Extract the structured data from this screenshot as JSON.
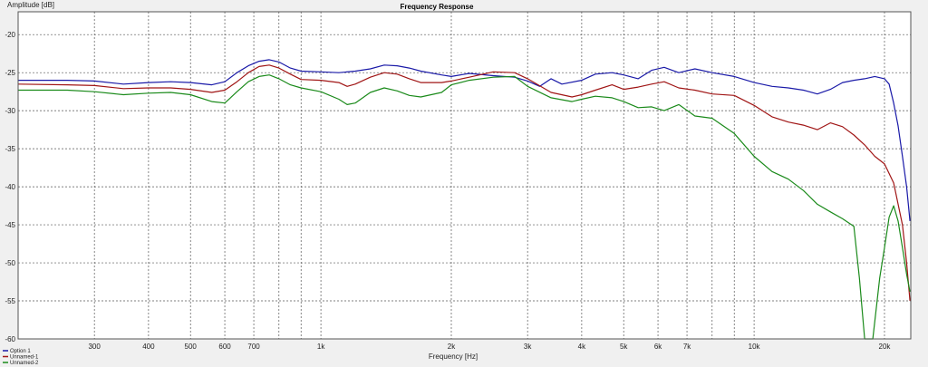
{
  "chart_data": {
    "type": "line",
    "title": "Frequency Response",
    "xlabel": "Frequency [Hz]",
    "ylabel": "Amplitude [dB]",
    "x_scale": "log",
    "xlim": [
      200,
      23000
    ],
    "ylim": [
      -60,
      -17
    ],
    "grid": true,
    "legend_position": "bottom-left",
    "x_ticks": [
      300,
      400,
      500,
      600,
      700,
      1000,
      2000,
      3000,
      4000,
      5000,
      6000,
      7000,
      10000,
      20000
    ],
    "x_tick_labels": [
      "300",
      "400",
      "500",
      "600",
      "700",
      "1k",
      "2k",
      "3k",
      "4k",
      "5k",
      "6k",
      "7k",
      "10k",
      "20k"
    ],
    "x_minor_ticks": [
      800,
      900,
      8000,
      9000
    ],
    "y_ticks": [
      -20,
      -25,
      -30,
      -35,
      -40,
      -45,
      -50,
      -55,
      -60
    ],
    "y_tick_labels": [
      "-20",
      "-25",
      "-30",
      "-35",
      "-40",
      "-45",
      "-50",
      "-55",
      "-60"
    ],
    "series": [
      {
        "name": "Option 1",
        "color": "#1a1aa8",
        "points": [
          [
            200,
            -26.0
          ],
          [
            260,
            -26.0
          ],
          [
            300,
            -26.1
          ],
          [
            350,
            -26.5
          ],
          [
            400,
            -26.3
          ],
          [
            450,
            -26.2
          ],
          [
            500,
            -26.3
          ],
          [
            560,
            -26.6
          ],
          [
            600,
            -26.2
          ],
          [
            640,
            -25.0
          ],
          [
            680,
            -24.1
          ],
          [
            720,
            -23.5
          ],
          [
            760,
            -23.3
          ],
          [
            800,
            -23.6
          ],
          [
            850,
            -24.4
          ],
          [
            900,
            -24.8
          ],
          [
            1000,
            -24.9
          ],
          [
            1100,
            -25.0
          ],
          [
            1200,
            -24.8
          ],
          [
            1300,
            -24.5
          ],
          [
            1400,
            -24.0
          ],
          [
            1500,
            -24.1
          ],
          [
            1600,
            -24.4
          ],
          [
            1700,
            -24.8
          ],
          [
            1900,
            -25.3
          ],
          [
            2000,
            -25.5
          ],
          [
            2200,
            -25.1
          ],
          [
            2500,
            -25.4
          ],
          [
            2800,
            -25.6
          ],
          [
            3000,
            -26.1
          ],
          [
            3200,
            -26.8
          ],
          [
            3400,
            -25.8
          ],
          [
            3600,
            -26.5
          ],
          [
            4000,
            -26.0
          ],
          [
            4300,
            -25.2
          ],
          [
            4700,
            -25.0
          ],
          [
            5000,
            -25.3
          ],
          [
            5400,
            -25.8
          ],
          [
            5800,
            -24.7
          ],
          [
            6200,
            -24.3
          ],
          [
            6700,
            -25.0
          ],
          [
            7300,
            -24.5
          ],
          [
            8000,
            -25.0
          ],
          [
            9000,
            -25.5
          ],
          [
            10000,
            -26.3
          ],
          [
            11000,
            -26.8
          ],
          [
            12000,
            -27.0
          ],
          [
            13000,
            -27.3
          ],
          [
            14000,
            -27.8
          ],
          [
            15000,
            -27.2
          ],
          [
            16000,
            -26.3
          ],
          [
            17000,
            -26.0
          ],
          [
            18000,
            -25.8
          ],
          [
            19000,
            -25.5
          ],
          [
            20000,
            -25.8
          ],
          [
            20500,
            -26.5
          ],
          [
            21000,
            -29.0
          ],
          [
            21500,
            -32.0
          ],
          [
            22000,
            -36.0
          ],
          [
            22500,
            -40.0
          ],
          [
            22900,
            -44.5
          ]
        ]
      },
      {
        "name": "Unnamed-1",
        "color": "#a01515",
        "points": [
          [
            200,
            -26.5
          ],
          [
            260,
            -26.6
          ],
          [
            300,
            -26.7
          ],
          [
            350,
            -27.1
          ],
          [
            400,
            -27.0
          ],
          [
            450,
            -27.0
          ],
          [
            500,
            -27.2
          ],
          [
            560,
            -27.6
          ],
          [
            600,
            -27.3
          ],
          [
            640,
            -26.2
          ],
          [
            680,
            -25.0
          ],
          [
            720,
            -24.2
          ],
          [
            760,
            -24.0
          ],
          [
            800,
            -24.4
          ],
          [
            850,
            -25.2
          ],
          [
            900,
            -25.9
          ],
          [
            1000,
            -26.0
          ],
          [
            1100,
            -26.3
          ],
          [
            1150,
            -26.8
          ],
          [
            1200,
            -26.5
          ],
          [
            1300,
            -25.6
          ],
          [
            1400,
            -25.0
          ],
          [
            1500,
            -25.2
          ],
          [
            1600,
            -25.8
          ],
          [
            1700,
            -26.3
          ],
          [
            1900,
            -26.3
          ],
          [
            2000,
            -26.1
          ],
          [
            2200,
            -25.6
          ],
          [
            2500,
            -24.9
          ],
          [
            2800,
            -25.0
          ],
          [
            3000,
            -25.8
          ],
          [
            3400,
            -27.6
          ],
          [
            3800,
            -28.2
          ],
          [
            4000,
            -27.9
          ],
          [
            4300,
            -27.3
          ],
          [
            4700,
            -26.6
          ],
          [
            5000,
            -27.2
          ],
          [
            5400,
            -26.9
          ],
          [
            5800,
            -26.5
          ],
          [
            6200,
            -26.2
          ],
          [
            6700,
            -27.0
          ],
          [
            7300,
            -27.3
          ],
          [
            8000,
            -27.8
          ],
          [
            9000,
            -28.0
          ],
          [
            10000,
            -29.3
          ],
          [
            11000,
            -30.8
          ],
          [
            12000,
            -31.5
          ],
          [
            13000,
            -31.9
          ],
          [
            14000,
            -32.5
          ],
          [
            15000,
            -31.6
          ],
          [
            16000,
            -32.1
          ],
          [
            17000,
            -33.2
          ],
          [
            18000,
            -34.5
          ],
          [
            19000,
            -36.0
          ],
          [
            20000,
            -37.0
          ],
          [
            21000,
            -39.5
          ],
          [
            22000,
            -45.0
          ],
          [
            22500,
            -50.0
          ],
          [
            22900,
            -55.0
          ]
        ]
      },
      {
        "name": "Unnamed-2",
        "color": "#1a8a1a",
        "points": [
          [
            200,
            -27.3
          ],
          [
            260,
            -27.3
          ],
          [
            300,
            -27.5
          ],
          [
            350,
            -27.9
          ],
          [
            400,
            -27.7
          ],
          [
            450,
            -27.6
          ],
          [
            500,
            -27.9
          ],
          [
            560,
            -28.8
          ],
          [
            600,
            -29.0
          ],
          [
            640,
            -27.5
          ],
          [
            680,
            -26.2
          ],
          [
            720,
            -25.5
          ],
          [
            760,
            -25.3
          ],
          [
            800,
            -25.8
          ],
          [
            850,
            -26.6
          ],
          [
            900,
            -27.0
          ],
          [
            1000,
            -27.5
          ],
          [
            1100,
            -28.5
          ],
          [
            1150,
            -29.2
          ],
          [
            1200,
            -29.0
          ],
          [
            1300,
            -27.6
          ],
          [
            1400,
            -27.0
          ],
          [
            1500,
            -27.4
          ],
          [
            1600,
            -28.0
          ],
          [
            1700,
            -28.2
          ],
          [
            1900,
            -27.6
          ],
          [
            2000,
            -26.6
          ],
          [
            2200,
            -26.0
          ],
          [
            2500,
            -25.6
          ],
          [
            2800,
            -25.5
          ],
          [
            3000,
            -26.8
          ],
          [
            3400,
            -28.3
          ],
          [
            3800,
            -28.8
          ],
          [
            4000,
            -28.5
          ],
          [
            4300,
            -28.1
          ],
          [
            4700,
            -28.3
          ],
          [
            5000,
            -28.8
          ],
          [
            5400,
            -29.6
          ],
          [
            5800,
            -29.5
          ],
          [
            6200,
            -30.0
          ],
          [
            6700,
            -29.2
          ],
          [
            7300,
            -30.7
          ],
          [
            8000,
            -31.0
          ],
          [
            9000,
            -33.0
          ],
          [
            10000,
            -36.0
          ],
          [
            11000,
            -38.0
          ],
          [
            12000,
            -39.0
          ],
          [
            13000,
            -40.5
          ],
          [
            14000,
            -42.3
          ],
          [
            15000,
            -43.3
          ],
          [
            16000,
            -44.2
          ],
          [
            17000,
            -45.2
          ],
          [
            17500,
            -52.0
          ],
          [
            18000,
            -60.0
          ],
          [
            18800,
            -60.0
          ],
          [
            19500,
            -52.0
          ],
          [
            20000,
            -48.0
          ],
          [
            20500,
            -44.0
          ],
          [
            21000,
            -42.5
          ],
          [
            21500,
            -44.5
          ],
          [
            22000,
            -48.0
          ],
          [
            22500,
            -51.5
          ],
          [
            22900,
            -53.8
          ]
        ]
      }
    ]
  }
}
